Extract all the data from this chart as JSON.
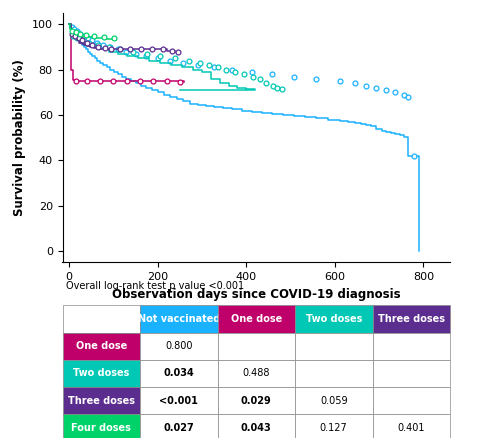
{
  "xlabel": "Observation days since COVID-19 diagnosis",
  "ylabel": "Survival probability (%)",
  "xlim": [
    -15,
    860
  ],
  "ylim": [
    -5,
    105
  ],
  "xticks": [
    0,
    200,
    400,
    600,
    800
  ],
  "yticks": [
    0,
    20,
    40,
    60,
    80,
    100
  ],
  "overall_log_rank": "Overall log-rank test p value <0.001",
  "curves": {
    "not_vaccinated": {
      "color": "#1ab2ff",
      "label": "Not vaccinated",
      "steps": [
        [
          0,
          100
        ],
        [
          3,
          99
        ],
        [
          6,
          98
        ],
        [
          9,
          97
        ],
        [
          12,
          96
        ],
        [
          15,
          95
        ],
        [
          18,
          94
        ],
        [
          21,
          93
        ],
        [
          25,
          92
        ],
        [
          29,
          91
        ],
        [
          33,
          90
        ],
        [
          37,
          89
        ],
        [
          42,
          88
        ],
        [
          47,
          87
        ],
        [
          52,
          86
        ],
        [
          58,
          85
        ],
        [
          64,
          84
        ],
        [
          70,
          83
        ],
        [
          77,
          82
        ],
        [
          85,
          81
        ],
        [
          93,
          80
        ],
        [
          101,
          79
        ],
        [
          110,
          78
        ],
        [
          119,
          77
        ],
        [
          129,
          76
        ],
        [
          139,
          75
        ],
        [
          150,
          74
        ],
        [
          162,
          73
        ],
        [
          174,
          72
        ],
        [
          187,
          71
        ],
        [
          200,
          70
        ],
        [
          214,
          69
        ],
        [
          228,
          68
        ],
        [
          243,
          67
        ],
        [
          258,
          66
        ],
        [
          274,
          65
        ],
        [
          292,
          64.5
        ],
        [
          310,
          64
        ],
        [
          328,
          63.5
        ],
        [
          348,
          63
        ],
        [
          368,
          62.5
        ],
        [
          390,
          62
        ],
        [
          412,
          61.5
        ],
        [
          435,
          61
        ],
        [
          458,
          60.5
        ],
        [
          482,
          60
        ],
        [
          507,
          59.5
        ],
        [
          532,
          59
        ],
        [
          558,
          58.5
        ],
        [
          584,
          58
        ],
        [
          611,
          57.5
        ],
        [
          630,
          57
        ],
        [
          645,
          56.5
        ],
        [
          658,
          56
        ],
        [
          670,
          55.5
        ],
        [
          682,
          55
        ],
        [
          694,
          54
        ],
        [
          706,
          53
        ],
        [
          716,
          52.5
        ],
        [
          726,
          52
        ],
        [
          736,
          51.5
        ],
        [
          746,
          51
        ],
        [
          756,
          50.5
        ],
        [
          766,
          42
        ],
        [
          778,
          42
        ],
        [
          790,
          0
        ]
      ],
      "censors": [
        [
          6,
          99
        ],
        [
          12,
          98
        ],
        [
          18,
          97
        ],
        [
          25,
          96
        ],
        [
          33,
          95
        ],
        [
          42,
          94
        ],
        [
          52,
          93
        ],
        [
          64,
          92
        ],
        [
          77,
          91
        ],
        [
          93,
          90
        ],
        [
          110,
          89
        ],
        [
          129,
          88
        ],
        [
          150,
          87
        ],
        [
          174,
          86
        ],
        [
          200,
          85
        ],
        [
          228,
          84
        ],
        [
          258,
          83
        ],
        [
          292,
          82
        ],
        [
          328,
          81
        ],
        [
          368,
          80
        ],
        [
          412,
          79
        ],
        [
          458,
          78
        ],
        [
          507,
          77
        ],
        [
          558,
          76
        ],
        [
          611,
          75
        ],
        [
          645,
          74
        ],
        [
          670,
          73
        ],
        [
          694,
          72
        ],
        [
          716,
          71
        ],
        [
          736,
          70
        ],
        [
          756,
          69
        ],
        [
          766,
          68
        ],
        [
          778,
          42
        ]
      ]
    },
    "one_dose": {
      "color": "#c0006a",
      "label": "One dose",
      "steps": [
        [
          0,
          100
        ],
        [
          4,
          80
        ],
        [
          8,
          75.5
        ],
        [
          15,
          75
        ],
        [
          30,
          75
        ],
        [
          60,
          75
        ],
        [
          90,
          75
        ],
        [
          120,
          75
        ],
        [
          150,
          75
        ],
        [
          180,
          75
        ],
        [
          210,
          75
        ],
        [
          240,
          75
        ],
        [
          260,
          74.5
        ]
      ],
      "censors": [
        [
          15,
          75
        ],
        [
          40,
          75
        ],
        [
          70,
          75
        ],
        [
          100,
          75
        ],
        [
          130,
          75
        ],
        [
          160,
          75
        ],
        [
          190,
          75
        ],
        [
          220,
          75
        ],
        [
          250,
          74.5
        ]
      ]
    },
    "two_doses": {
      "color": "#00c8b4",
      "label": "Two doses",
      "steps": [
        [
          0,
          100
        ],
        [
          4,
          96
        ],
        [
          8,
          95
        ],
        [
          12,
          94
        ],
        [
          18,
          93
        ],
        [
          25,
          92
        ],
        [
          35,
          91
        ],
        [
          50,
          90
        ],
        [
          70,
          89
        ],
        [
          90,
          88
        ],
        [
          110,
          87
        ],
        [
          130,
          86
        ],
        [
          155,
          85
        ],
        [
          180,
          84
        ],
        [
          205,
          83
        ],
        [
          230,
          82
        ],
        [
          255,
          81
        ],
        [
          280,
          80
        ],
        [
          300,
          79
        ],
        [
          320,
          76
        ],
        [
          340,
          74
        ],
        [
          360,
          73
        ],
        [
          380,
          72
        ],
        [
          400,
          71.5
        ],
        [
          420,
          71
        ],
        [
          250,
          71
        ]
      ],
      "censors": [
        [
          8,
          95
        ],
        [
          18,
          94
        ],
        [
          30,
          93
        ],
        [
          45,
          92
        ],
        [
          65,
          91
        ],
        [
          90,
          90
        ],
        [
          115,
          89
        ],
        [
          145,
          88
        ],
        [
          175,
          87
        ],
        [
          205,
          86
        ],
        [
          240,
          85
        ],
        [
          270,
          84
        ],
        [
          295,
          83
        ],
        [
          315,
          82
        ],
        [
          335,
          81
        ],
        [
          355,
          80
        ],
        [
          375,
          79
        ],
        [
          395,
          78
        ],
        [
          415,
          77
        ],
        [
          430,
          76
        ],
        [
          445,
          74
        ],
        [
          460,
          73
        ],
        [
          470,
          72
        ],
        [
          480,
          71.5
        ]
      ]
    },
    "three_doses": {
      "color": "#5b2d8e",
      "label": "Three doses",
      "steps": [
        [
          0,
          100
        ],
        [
          4,
          97
        ],
        [
          7,
          96
        ],
        [
          10,
          95
        ],
        [
          14,
          94
        ],
        [
          18,
          93
        ],
        [
          23,
          92
        ],
        [
          28,
          91.5
        ],
        [
          34,
          91
        ],
        [
          40,
          90.5
        ],
        [
          47,
          90
        ],
        [
          55,
          89.5
        ],
        [
          63,
          89
        ],
        [
          72,
          89
        ],
        [
          85,
          89
        ],
        [
          100,
          89
        ],
        [
          120,
          89
        ],
        [
          140,
          89
        ],
        [
          160,
          89
        ],
        [
          180,
          89
        ],
        [
          200,
          89
        ],
        [
          220,
          88.5
        ],
        [
          240,
          88
        ]
      ],
      "censors": [
        [
          7,
          96
        ],
        [
          14,
          95
        ],
        [
          22,
          94
        ],
        [
          30,
          93
        ],
        [
          40,
          92
        ],
        [
          52,
          91
        ],
        [
          65,
          90
        ],
        [
          80,
          89.5
        ],
        [
          95,
          89
        ],
        [
          115,
          89
        ],
        [
          138,
          89
        ],
        [
          162,
          89
        ],
        [
          188,
          89
        ],
        [
          212,
          89
        ],
        [
          232,
          88.5
        ],
        [
          245,
          88
        ]
      ]
    },
    "four_doses": {
      "color": "#00d26a",
      "label": "Four doses",
      "steps": [
        [
          0,
          100
        ],
        [
          3,
          98
        ],
        [
          6,
          97
        ],
        [
          10,
          96.5
        ],
        [
          15,
          96
        ],
        [
          22,
          95.5
        ],
        [
          30,
          95
        ],
        [
          42,
          94.5
        ],
        [
          58,
          94
        ],
        [
          80,
          93.5
        ],
        [
          105,
          93
        ]
      ],
      "censors": [
        [
          6,
          97
        ],
        [
          15,
          96.5
        ],
        [
          25,
          96
        ],
        [
          38,
          95.5
        ],
        [
          55,
          95
        ],
        [
          78,
          94.5
        ],
        [
          102,
          94
        ]
      ]
    }
  },
  "table": {
    "header_cols": [
      "Not vaccinated",
      "One dose",
      "Two doses",
      "Three doses"
    ],
    "header_col_colors": [
      "#1ab2ff",
      "#c0006a",
      "#00c8b4",
      "#5b2d8e"
    ],
    "rows": [
      {
        "label": "One dose",
        "label_color": "#c0006a",
        "values": [
          "0.800",
          "",
          "",
          ""
        ]
      },
      {
        "label": "Two doses",
        "label_color": "#00c8b4",
        "values": [
          "0.034",
          "0.488",
          "",
          ""
        ]
      },
      {
        "label": "Three doses",
        "label_color": "#5b2d8e",
        "values": [
          "<0.001",
          "0.029",
          "0.059",
          ""
        ]
      },
      {
        "label": "Four doses",
        "label_color": "#00d26a",
        "values": [
          "0.027",
          "0.043",
          "0.127",
          "0.401"
        ]
      }
    ],
    "bold_values": [
      "0.034",
      "<0.001",
      "0.027",
      "0.029",
      "0.043"
    ]
  }
}
